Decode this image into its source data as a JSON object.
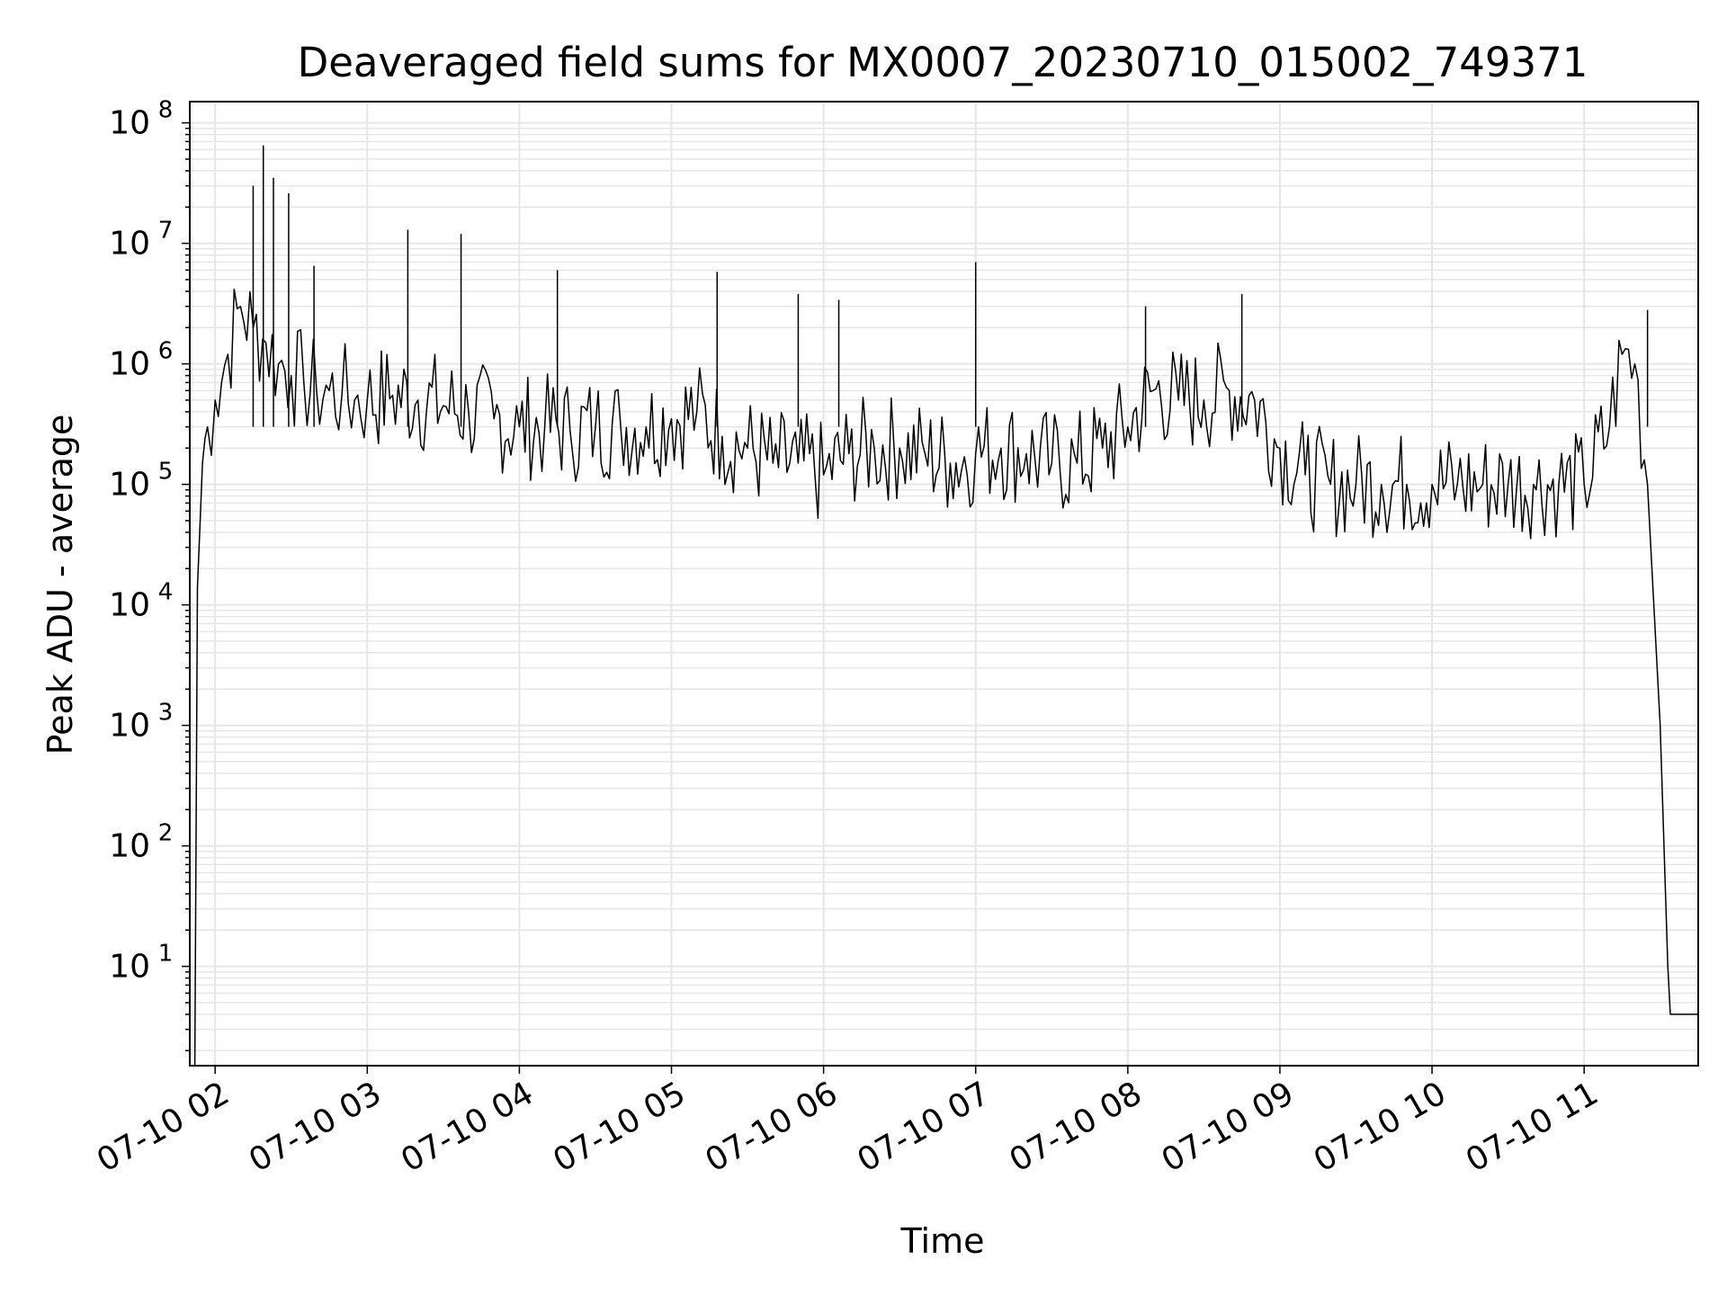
{
  "chart_data": {
    "type": "line",
    "title": "Deaveraged field sums for MX0007_20230710_015002_749371",
    "xlabel": "Time",
    "ylabel": "Peak ADU - average",
    "y_scale": "log",
    "ylim": [
      1.5,
      150000000
    ],
    "xlim": [
      "2023-07-10 01:50:00",
      "2023-07-10 11:45:00"
    ],
    "grid": true,
    "line_color": "#000000",
    "grid_color": "#e6e6e6",
    "x_ticks": [
      {
        "value": "2023-07-10 02:00",
        "label": "07-10 02"
      },
      {
        "value": "2023-07-10 03:00",
        "label": "07-10 03"
      },
      {
        "value": "2023-07-10 04:00",
        "label": "07-10 04"
      },
      {
        "value": "2023-07-10 05:00",
        "label": "07-10 05"
      },
      {
        "value": "2023-07-10 06:00",
        "label": "07-10 06"
      },
      {
        "value": "2023-07-10 07:00",
        "label": "07-10 07"
      },
      {
        "value": "2023-07-10 08:00",
        "label": "07-10 08"
      },
      {
        "value": "2023-07-10 09:00",
        "label": "07-10 09"
      },
      {
        "value": "2023-07-10 10:00",
        "label": "07-10 10"
      },
      {
        "value": "2023-07-10 11:00",
        "label": "07-10 11"
      }
    ],
    "y_ticks": [
      {
        "value": 10,
        "base": "10",
        "exp": "1"
      },
      {
        "value": 100,
        "base": "10",
        "exp": "2"
      },
      {
        "value": 1000,
        "base": "10",
        "exp": "3"
      },
      {
        "value": 10000,
        "base": "10",
        "exp": "4"
      },
      {
        "value": 100000,
        "base": "10",
        "exp": "5"
      },
      {
        "value": 1000000,
        "base": "10",
        "exp": "6"
      },
      {
        "value": 10000000,
        "base": "10",
        "exp": "7"
      },
      {
        "value": 100000000,
        "base": "10",
        "exp": "8"
      }
    ],
    "series": [
      {
        "x": [
          "2023-07-10 01:52",
          "2023-07-10 01:53",
          "2023-07-10 01:55",
          "2023-07-10 01:57",
          "2023-07-10 02:00",
          "2023-07-10 02:05",
          "2023-07-10 02:10",
          "2023-07-10 02:15",
          "2023-07-10 02:20",
          "2023-07-10 02:25",
          "2023-07-10 02:30",
          "2023-07-10 02:35",
          "2023-07-10 02:40",
          "2023-07-10 02:45",
          "2023-07-10 02:50",
          "2023-07-10 02:55",
          "2023-07-10 03:00",
          "2023-07-10 03:10",
          "2023-07-10 03:20",
          "2023-07-10 03:30",
          "2023-07-10 03:40",
          "2023-07-10 03:50",
          "2023-07-10 04:00",
          "2023-07-10 04:10",
          "2023-07-10 04:20",
          "2023-07-10 04:30",
          "2023-07-10 04:40",
          "2023-07-10 04:50",
          "2023-07-10 05:00",
          "2023-07-10 05:10",
          "2023-07-10 05:20",
          "2023-07-10 05:30",
          "2023-07-10 05:40",
          "2023-07-10 05:50",
          "2023-07-10 06:00",
          "2023-07-10 06:10",
          "2023-07-10 06:20",
          "2023-07-10 06:30",
          "2023-07-10 06:40",
          "2023-07-10 06:50",
          "2023-07-10 07:00",
          "2023-07-10 07:10",
          "2023-07-10 07:20",
          "2023-07-10 07:30",
          "2023-07-10 07:40",
          "2023-07-10 07:50",
          "2023-07-10 08:00",
          "2023-07-10 08:10",
          "2023-07-10 08:20",
          "2023-07-10 08:30",
          "2023-07-10 08:40",
          "2023-07-10 08:50",
          "2023-07-10 09:00",
          "2023-07-10 09:10",
          "2023-07-10 09:20",
          "2023-07-10 09:30",
          "2023-07-10 09:40",
          "2023-07-10 09:50",
          "2023-07-10 10:00",
          "2023-07-10 10:10",
          "2023-07-10 10:20",
          "2023-07-10 10:30",
          "2023-07-10 10:40",
          "2023-07-10 10:50",
          "2023-07-10 11:00",
          "2023-07-10 11:10",
          "2023-07-10 11:15",
          "2023-07-10 11:20",
          "2023-07-10 11:25",
          "2023-07-10 11:30",
          "2023-07-10 11:33",
          "2023-07-10 11:34",
          "2023-07-10 11:35",
          "2023-07-10 11:45"
        ],
        "values": [
          1.5,
          14000,
          150000,
          300000,
          500000,
          1200000,
          3000000,
          2000000,
          1500000,
          1000000,
          800000,
          700000,
          600000,
          600000,
          550000,
          500000,
          500000,
          550000,
          500000,
          450000,
          400000,
          350000,
          300000,
          300000,
          280000,
          300000,
          300000,
          300000,
          350000,
          400000,
          250000,
          200000,
          150000,
          150000,
          120000,
          180000,
          200000,
          200000,
          180000,
          150000,
          180000,
          200000,
          180000,
          150000,
          150000,
          200000,
          300000,
          600000,
          500000,
          500000,
          600000,
          500000,
          200000,
          120000,
          100000,
          100000,
          100000,
          100000,
          100000,
          100000,
          100000,
          100000,
          100000,
          100000,
          100000,
          300000,
          1200000,
          1000000,
          100000,
          1000,
          10,
          4,
          4,
          4
        ]
      }
    ],
    "spikes": [
      {
        "x": "2023-07-10 02:19",
        "value": 65000000
      },
      {
        "x": "2023-07-10 02:23",
        "value": 35000000
      },
      {
        "x": "2023-07-10 02:29",
        "value": 26000000
      },
      {
        "x": "2023-07-10 02:15",
        "value": 30000000
      },
      {
        "x": "2023-07-10 02:39",
        "value": 6500000
      },
      {
        "x": "2023-07-10 03:16",
        "value": 13000000
      },
      {
        "x": "2023-07-10 03:37",
        "value": 12000000
      },
      {
        "x": "2023-07-10 04:15",
        "value": 6000000
      },
      {
        "x": "2023-07-10 05:18",
        "value": 5800000
      },
      {
        "x": "2023-07-10 05:50",
        "value": 3800000
      },
      {
        "x": "2023-07-10 06:06",
        "value": 3400000
      },
      {
        "x": "2023-07-10 07:00",
        "value": 7000000
      },
      {
        "x": "2023-07-10 08:07",
        "value": 3000000
      },
      {
        "x": "2023-07-10 08:45",
        "value": 3800000
      },
      {
        "x": "2023-07-10 11:25",
        "value": 2800000
      }
    ]
  }
}
